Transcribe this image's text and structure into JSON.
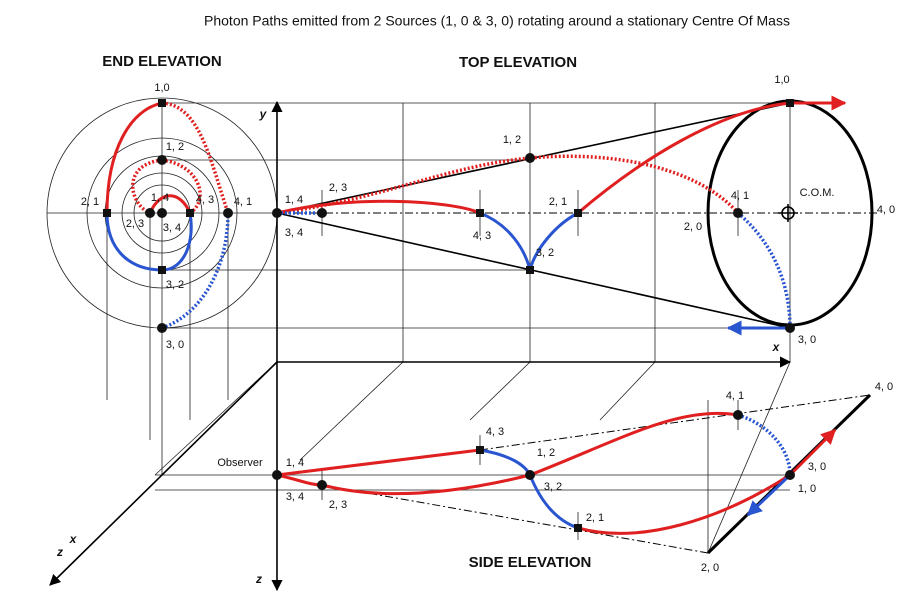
{
  "title": "Photon Paths emitted from 2 Sources (1, 0 & 3, 0) rotating around a stationary Centre Of Mass",
  "end_elevation": {
    "title": "END ELEVATION",
    "labels": [
      "1,0",
      "1, 2",
      "2, 1",
      "2, 3",
      "1, 4",
      "3, 4",
      "4, 3",
      "4, 1",
      "3, 2",
      "3, 0"
    ]
  },
  "top_elevation": {
    "title": "TOP ELEVATION",
    "labels": [
      "1,0",
      "1, 2",
      "2, 3",
      "1, 4",
      "3, 4",
      "4, 3",
      "2, 1",
      "3, 2",
      "4, 1",
      "2, 0",
      "C.O.M.",
      "4, 0",
      "3, 0"
    ]
  },
  "side_elevation": {
    "title": "SIDE ELEVATION",
    "labels": [
      "Observer",
      "1, 4",
      "3, 4",
      "2, 3",
      "4, 3",
      "1, 2",
      "3, 2",
      "2, 1",
      "4, 1",
      "3, 0",
      "1, 0",
      "4, 0",
      "2, 0"
    ]
  },
  "axes": [
    "y",
    "x",
    "x",
    "z",
    "z"
  ]
}
